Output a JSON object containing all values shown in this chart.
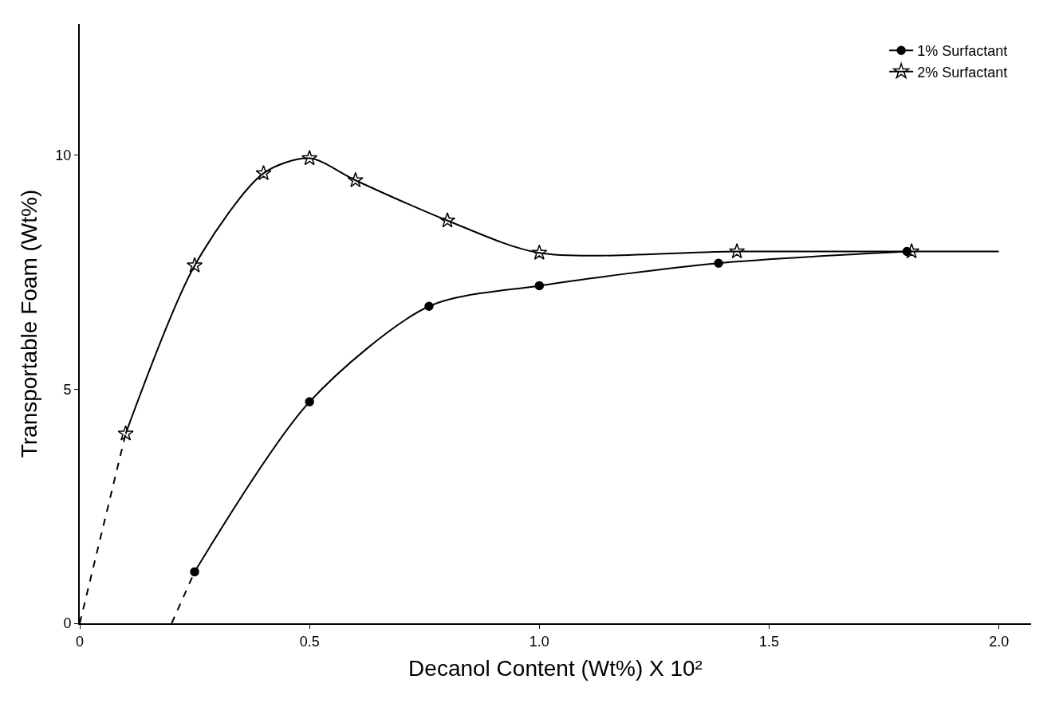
{
  "chart_data": {
    "type": "line",
    "xlabel": "Decanol Content (Wt%) X 10²",
    "ylabel": "Transportable Foam (Wt%)",
    "xlim": [
      0,
      2.07
    ],
    "xticks": [
      0,
      0.5,
      {
        "value": 1,
        "label": "1.0"
      },
      1.5,
      {
        "value": 2,
        "label": "2.0"
      }
    ],
    "ylim": [
      0,
      12.8
    ],
    "yticks": [
      0,
      5,
      10
    ],
    "legend": "top right",
    "series": [
      {
        "name": "1% Surfactant",
        "color": "#000000",
        "marker": "circle",
        "line_style": "solid",
        "x": [
          0.25,
          0.5,
          0.76,
          1.0,
          1.39,
          1.8
        ],
        "values": [
          1.1,
          4.73,
          6.77,
          7.21,
          7.69,
          7.94
        ]
      },
      {
        "name": "2% Surfactant",
        "color": "#000000",
        "marker": "star",
        "line_style": "solid",
        "x": [
          0.1,
          0.25,
          0.4,
          0.5,
          0.6,
          0.8,
          1.0,
          1.43,
          1.81
        ],
        "values": [
          4.05,
          7.64,
          9.61,
          9.93,
          9.46,
          8.6,
          7.91,
          7.94,
          7.94
        ]
      },
      {
        "color": "#000000",
        "marker": "none",
        "line_style": "dashed",
        "x": [
          0.2,
          0.25
        ],
        "values": [
          0,
          1.1
        ]
      },
      {
        "color": "#000000",
        "marker": "none",
        "line_style": "dashed",
        "x": [
          0,
          0.1
        ],
        "values": [
          0,
          4.05
        ]
      },
      {
        "color": "#000000",
        "marker": "none",
        "line_style": "solid",
        "x": [
          1.8,
          2.0
        ],
        "values": [
          7.94,
          7.94
        ]
      }
    ]
  }
}
